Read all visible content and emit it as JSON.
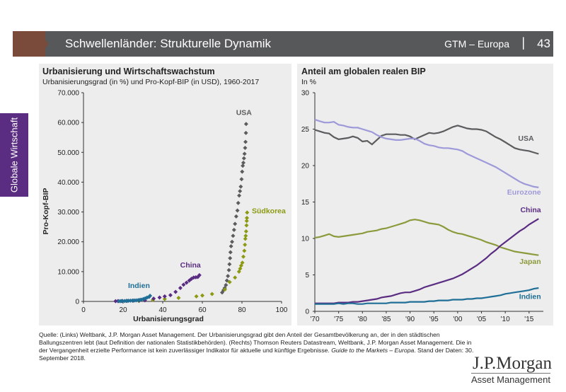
{
  "header": {
    "title": "Schwellenländer: Strukturelle Dynamik",
    "section": "GTM – Europa",
    "separator": "|",
    "page": "43"
  },
  "sidebar": {
    "label": "Globale Wirtschaft"
  },
  "colors": {
    "usa": "#5c5c5e",
    "china": "#5b2d82",
    "india": "#1f6f96",
    "korea": "#8c9a12",
    "eurozone": "#9e9ad9",
    "japan": "#8c9a3c",
    "panel": "#ededee",
    "header": "#57585a",
    "tab": "#7a4a3a"
  },
  "footnote": {
    "text": "Quelle: (Links) Weltbank, J.P. Morgan Asset Management. Der Urbanisierungsgrad gibt den Anteil der Gesamtbevölkerung an, der in den städtischen Ballungszentren lebt (laut Definition der nationalen Statistikbehörden). (Rechts) Thomson Reuters Datastream, Weltbank, J.P. Morgan Asset Management. Die in der Vergangenheit erzielte Performance ist kein zuverlässiger Indikator für aktuelle und künftige Ergebnisse. ",
    "italic": "Guide to the Markets – Europa",
    "tail": ". Stand der Daten: 30. September 2018."
  },
  "logo": {
    "name": "J.P.Morgan",
    "sub": "Asset Management"
  },
  "chart_data": [
    {
      "type": "scatter",
      "title": "Urbanisierung und Wirtschaftswachstum",
      "subtitle": "Urbanisierungsgrad (in %) und Pro-Kopf-BIP (in USD), 1960-2017",
      "xlabel": "Urbanisierungsgrad",
      "ylabel": "Pro-Kopf-BIP",
      "xlim": [
        0,
        100
      ],
      "ylim": [
        0,
        70000
      ],
      "xticks": [
        "0",
        "20",
        "40",
        "60",
        "80",
        "100"
      ],
      "yticks": [
        "0",
        "10.000",
        "20.000",
        "30.000",
        "40.000",
        "50.000",
        "60.000",
        "70.000"
      ],
      "series": [
        {
          "name": "USA",
          "x": [
            70.0,
            70.7,
            71.3,
            71.9,
            72.4,
            72.9,
            73.4,
            73.7,
            74.0,
            74.2,
            74.5,
            75.0,
            75.5,
            76.0,
            76.5,
            77.1,
            77.7,
            78.1,
            78.6,
            79.0,
            79.4,
            79.8,
            80.1,
            80.4,
            80.7,
            81.0,
            81.3,
            81.6,
            81.8,
            82.0,
            82.1
          ],
          "y": [
            3000,
            3800,
            4500,
            5500,
            7000,
            8500,
            10500,
            12500,
            14500,
            16500,
            18500,
            20000,
            22000,
            24000,
            26000,
            28500,
            30500,
            33000,
            35500,
            37000,
            38500,
            41000,
            43500,
            45500,
            46500,
            48000,
            49500,
            51500,
            53500,
            56500,
            59500
          ]
        },
        {
          "name": "Südkorea",
          "x": [
            28.0,
            35.0,
            41.0,
            48.0,
            57.0,
            60.0,
            64.9,
            71.4,
            73.8,
            76.5,
            78.5,
            79.1,
            79.6,
            80.2,
            80.7,
            81.2,
            81.5,
            81.7,
            81.9,
            82.1,
            82.3,
            82.4,
            82.5,
            82.6
          ],
          "y": [
            160,
            500,
            800,
            1200,
            1700,
            2000,
            2500,
            4000,
            6500,
            8000,
            10000,
            11000,
            12000,
            13000,
            15000,
            17000,
            19000,
            21000,
            22000,
            23500,
            25500,
            27000,
            28000,
            29800
          ]
        },
        {
          "name": "China",
          "x": [
            16.2,
            17.4,
            19.4,
            22.0,
            25.0,
            28.0,
            31.0,
            35.4,
            38.4,
            41.0,
            43.9,
            46.5,
            48.9,
            50.5,
            52.0,
            53.4,
            54.5,
            55.6,
            56.7,
            57.7,
            58.5
          ],
          "y": [
            90,
            120,
            160,
            190,
            250,
            300,
            350,
            950,
            1300,
            1700,
            2100,
            3200,
            4500,
            5600,
            6300,
            7000,
            7600,
            8000,
            8100,
            8200,
            8800
          ]
        },
        {
          "name": "Indien",
          "x": [
            17.9,
            18.8,
            19.8,
            20.8,
            21.7,
            22.7,
            23.7,
            24.7,
            25.7,
            26.6,
            27.6,
            28.5,
            29.2,
            30.2,
            31.1,
            32.1,
            33.1,
            33.6
          ],
          "y": [
            80,
            100,
            120,
            150,
            190,
            240,
            270,
            300,
            330,
            370,
            440,
            520,
            600,
            800,
            1000,
            1300,
            1500,
            1900
          ]
        }
      ],
      "annotations": [
        "USA",
        "Südkorea",
        "China",
        "Indien"
      ]
    },
    {
      "type": "line",
      "title": "Anteil am globalen realen BIP",
      "subtitle": "In %",
      "xlim": [
        1970,
        2018
      ],
      "ylim": [
        0,
        30
      ],
      "xticks": [
        "'70",
        "'75",
        "'80",
        "'85",
        "'90",
        "'95",
        "'00",
        "'05",
        "'10",
        "'15"
      ],
      "yticks": [
        "0",
        "5",
        "10",
        "15",
        "20",
        "25",
        "30"
      ],
      "x": [
        1970,
        1971,
        1972,
        1973,
        1974,
        1975,
        1976,
        1977,
        1978,
        1979,
        1980,
        1981,
        1982,
        1983,
        1984,
        1985,
        1986,
        1987,
        1988,
        1989,
        1990,
        1991,
        1992,
        1993,
        1994,
        1995,
        1996,
        1997,
        1998,
        1999,
        2000,
        2001,
        2002,
        2003,
        2004,
        2005,
        2006,
        2007,
        2008,
        2009,
        2010,
        2011,
        2012,
        2013,
        2014,
        2015,
        2016,
        2017
      ],
      "series": [
        {
          "name": "USA",
          "values": [
            24.9,
            24.7,
            24.5,
            24.4,
            23.9,
            23.6,
            23.7,
            23.8,
            24.0,
            23.8,
            23.3,
            23.4,
            22.9,
            23.5,
            24.1,
            24.3,
            24.3,
            24.3,
            24.2,
            24.2,
            24.0,
            23.6,
            23.9,
            24.2,
            24.5,
            24.4,
            24.5,
            24.7,
            25.0,
            25.3,
            25.5,
            25.3,
            25.1,
            25.0,
            25.0,
            24.9,
            24.7,
            24.3,
            23.9,
            23.6,
            23.2,
            22.8,
            22.4,
            22.2,
            22.1,
            22.0,
            21.8,
            21.6
          ]
        },
        {
          "name": "Eurozone",
          "values": [
            26.3,
            26.1,
            25.9,
            25.9,
            26.0,
            25.6,
            25.5,
            25.3,
            25.2,
            25.2,
            25.0,
            24.8,
            24.6,
            24.2,
            23.9,
            23.7,
            23.6,
            23.5,
            23.5,
            23.6,
            23.7,
            23.7,
            23.4,
            23.0,
            22.8,
            22.7,
            22.5,
            22.4,
            22.4,
            22.3,
            22.2,
            22.0,
            21.6,
            21.3,
            21.0,
            20.7,
            20.4,
            20.1,
            19.8,
            19.4,
            19.0,
            18.6,
            18.2,
            17.8,
            17.5,
            17.3,
            17.1,
            17.0
          ]
        },
        {
          "name": "Japan",
          "values": [
            10.1,
            10.2,
            10.4,
            10.6,
            10.3,
            10.2,
            10.3,
            10.4,
            10.5,
            10.6,
            10.7,
            10.9,
            11.0,
            11.1,
            11.3,
            11.4,
            11.6,
            11.8,
            12.0,
            12.2,
            12.5,
            12.6,
            12.5,
            12.3,
            12.1,
            12.0,
            11.9,
            11.6,
            11.2,
            10.9,
            10.7,
            10.6,
            10.4,
            10.2,
            10.0,
            9.8,
            9.5,
            9.3,
            9.1,
            8.8,
            8.6,
            8.4,
            8.2,
            8.1,
            8.0,
            7.9,
            7.8,
            7.7
          ]
        },
        {
          "name": "China",
          "values": [
            1.1,
            1.1,
            1.1,
            1.1,
            1.1,
            1.2,
            1.2,
            1.2,
            1.3,
            1.3,
            1.4,
            1.5,
            1.6,
            1.7,
            1.9,
            2.0,
            2.1,
            2.3,
            2.5,
            2.6,
            2.6,
            2.8,
            3.0,
            3.3,
            3.5,
            3.7,
            3.9,
            4.1,
            4.3,
            4.5,
            4.8,
            5.1,
            5.5,
            5.9,
            6.3,
            6.8,
            7.3,
            7.9,
            8.4,
            9.0,
            9.5,
            10.0,
            10.5,
            11.0,
            11.4,
            11.9,
            12.3,
            12.7
          ]
        },
        {
          "name": "Indien",
          "values": [
            1.0,
            1.0,
            1.0,
            1.0,
            1.0,
            1.1,
            1.0,
            1.1,
            1.1,
            1.0,
            1.0,
            1.1,
            1.1,
            1.1,
            1.1,
            1.1,
            1.2,
            1.2,
            1.2,
            1.2,
            1.3,
            1.3,
            1.3,
            1.3,
            1.4,
            1.4,
            1.5,
            1.5,
            1.5,
            1.6,
            1.6,
            1.6,
            1.7,
            1.7,
            1.8,
            1.8,
            1.9,
            2.0,
            2.1,
            2.2,
            2.4,
            2.5,
            2.6,
            2.7,
            2.8,
            2.9,
            3.1,
            3.2
          ]
        }
      ]
    }
  ]
}
